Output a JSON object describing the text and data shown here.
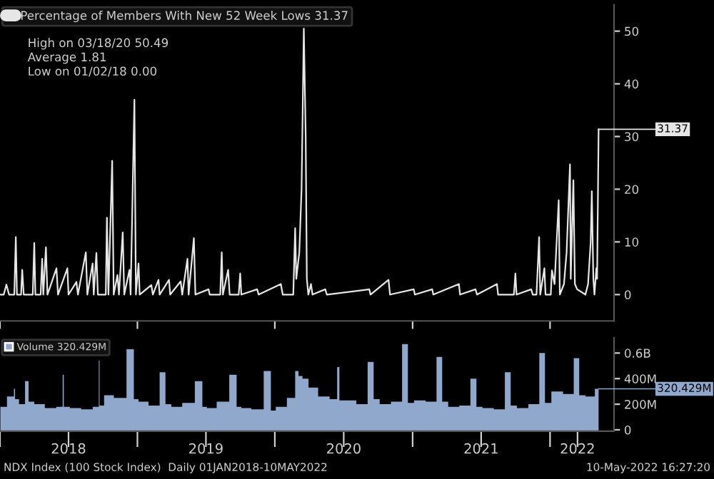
{
  "chart_data": [
    {
      "type": "line",
      "legend": "top left",
      "tick_labels": "y",
      "grid": false,
      "xlim": [
        "2018-01-01",
        "2022-06-20"
      ],
      "ylim": [
        -5,
        55
      ],
      "yticks": [
        0,
        10,
        20,
        30,
        40,
        50
      ],
      "xticks": [
        {
          "value": "2018-01-01",
          "label": null
        },
        {
          "value": "2019-01-01",
          "label": null
        },
        {
          "value": "2020-01-01",
          "label": null
        },
        {
          "value": "2021-01-01",
          "label": null
        },
        {
          "value": "2022-01-01",
          "label": null
        }
      ],
      "annotations": [
        "High on 03/18/20 50.49",
        "Average 1.81",
        "Low on 01/02/18 0.00",
        {
          "text": "31.37",
          "x": "2022-05-10",
          "y": 31.37
        }
      ],
      "series": [
        {
          "name": "Percentage of Members With New 52 Week Lows 31.37",
          "color": "#e6e6e6",
          "x": [
            "2018-01-02",
            "2018-01-11",
            "2018-01-18",
            "2018-01-25",
            "2018-02-08",
            "2018-02-12",
            "2018-02-15",
            "2018-02-26",
            "2018-03-01",
            "2018-03-05",
            "2018-03-29",
            "2018-04-02",
            "2018-04-05",
            "2018-04-19",
            "2018-04-23",
            "2018-04-26",
            "2018-05-03",
            "2018-05-07",
            "2018-05-31",
            "2018-06-04",
            "2018-06-29",
            "2018-07-02",
            "2018-07-23",
            "2018-07-27",
            "2018-08-17",
            "2018-08-21",
            "2018-09-04",
            "2018-09-07",
            "2018-09-14",
            "2018-09-18",
            "2018-10-09",
            "2018-10-12",
            "2018-10-16",
            "2018-10-26",
            "2018-10-30",
            "2018-11-09",
            "2018-11-13",
            "2018-11-23",
            "2018-11-27",
            "2018-12-11",
            "2018-12-14",
            "2018-12-24",
            "2018-12-28",
            "2019-01-04",
            "2019-01-07",
            "2019-02-07",
            "2019-02-11",
            "2019-02-26",
            "2019-03-01",
            "2019-03-26",
            "2019-03-29",
            "2019-04-26",
            "2019-04-30",
            "2019-05-14",
            "2019-05-17",
            "2019-05-31",
            "2019-06-04",
            "2019-07-09",
            "2019-07-12",
            "2019-08-09",
            "2019-08-13",
            "2019-08-16",
            "2019-08-30",
            "2019-09-03",
            "2019-09-27",
            "2019-10-01",
            "2019-10-04",
            "2019-11-15",
            "2019-11-19",
            "2020-01-17",
            "2020-01-22",
            "2020-02-19",
            "2020-02-24",
            "2020-02-27",
            "2020-03-06",
            "2020-03-12",
            "2020-03-18",
            "2020-03-23",
            "2020-03-26",
            "2020-03-30",
            "2020-04-06",
            "2020-04-10",
            "2020-05-14",
            "2020-05-18",
            "2020-09-08",
            "2020-09-11",
            "2020-10-29",
            "2020-11-02",
            "2021-01-04",
            "2021-01-07",
            "2021-02-22",
            "2021-02-25",
            "2021-05-04",
            "2021-05-07",
            "2021-06-17",
            "2021-06-21",
            "2021-08-13",
            "2021-08-16",
            "2021-09-27",
            "2021-10-01",
            "2021-10-04",
            "2021-11-12",
            "2021-11-16",
            "2021-11-26",
            "2021-12-03",
            "2021-12-06",
            "2021-12-17",
            "2021-12-20",
            "2022-01-03",
            "2022-01-06",
            "2022-01-13",
            "2022-01-24",
            "2022-01-27",
            "2022-02-07",
            "2022-02-14",
            "2022-02-23",
            "2022-02-25",
            "2022-03-04",
            "2022-03-08",
            "2022-03-14",
            "2022-04-05",
            "2022-04-12",
            "2022-04-19",
            "2022-04-22",
            "2022-04-26",
            "2022-04-29",
            "2022-05-04",
            "2022-05-06",
            "2022-05-10"
          ],
          "values": [
            0,
            0,
            1.9,
            0,
            0,
            10.9,
            0,
            0,
            4.7,
            0,
            0,
            9.8,
            0,
            0,
            6.8,
            0,
            9,
            0,
            5,
            0,
            5,
            0,
            2.4,
            0,
            8,
            0,
            5.9,
            0,
            7.9,
            0,
            0,
            14.6,
            0,
            25.4,
            0,
            3.7,
            0,
            11.8,
            0,
            4.7,
            0,
            37,
            0,
            5.9,
            0,
            1.8,
            0,
            2.8,
            0,
            2.8,
            0,
            2.5,
            0,
            6.8,
            0,
            10.7,
            0,
            1,
            0,
            0,
            8,
            0,
            4.7,
            0,
            0,
            4,
            0,
            1,
            0,
            2,
            0,
            0,
            12.6,
            3,
            8,
            20,
            50.49,
            30,
            3,
            0,
            2,
            0,
            1,
            0,
            1,
            0,
            2.8,
            0,
            1,
            0,
            1,
            0,
            2,
            0,
            1,
            0,
            2,
            0,
            0,
            4,
            0,
            1,
            0,
            0,
            10.9,
            0,
            5,
            0,
            0,
            4.6,
            2,
            17.9,
            0,
            2,
            8,
            24.7,
            3,
            21.7,
            2,
            1,
            0,
            2,
            10,
            19.6,
            3,
            0,
            5,
            3,
            31.37
          ]
        }
      ]
    },
    {
      "type": "area",
      "tick_labels": "xy",
      "legend": "top left",
      "grid": false,
      "xlim": [
        "2018-01-01",
        "2022-06-20"
      ],
      "ylim": [
        -10000000,
        720000000
      ],
      "yticks": [
        0,
        {
          "value": 200000000,
          "label": "200M"
        },
        {
          "value": 400000000,
          "label": "400M"
        },
        {
          "value": 600000000,
          "label": "0.6B"
        }
      ],
      "xticks": [
        {
          "value": "2018-01-01",
          "label": null
        },
        {
          "value": "2018-07-02",
          "label": "2018"
        },
        {
          "value": "2019-01-01",
          "label": null
        },
        {
          "value": "2019-07-02",
          "label": "2019"
        },
        {
          "value": "2020-01-01",
          "label": null
        },
        {
          "value": "2020-07-02",
          "label": "2020"
        },
        {
          "value": "2021-01-01",
          "label": null
        },
        {
          "value": "2021-07-02",
          "label": "2021"
        },
        {
          "value": "2022-01-01",
          "label": null
        },
        {
          "value": "2022-03-15",
          "label": "2022"
        }
      ],
      "annotations": [
        "NDX Index (100 Stock Index)  Daily 01JAN2018-10MAY2022",
        "10-May-2022 16:27:20",
        {
          "text": "320.429M",
          "x": "2022-05-10",
          "y": 320429000
        }
      ],
      "series": [
        {
          "name": "Volume 320.429M",
          "color": "#8fa8cc",
          "x": [
            "2018-01-02",
            "2018-02-06",
            "2018-02-08",
            "2018-02-12",
            "2018-03-01",
            "2018-03-16",
            "2018-03-20",
            "2018-04-15",
            "2018-05-15",
            "2018-06-15",
            "2018-06-18",
            "2018-06-21",
            "2018-07-20",
            "2018-08-20",
            "2018-09-20",
            "2018-09-21",
            "2018-09-24",
            "2018-10-15",
            "2018-11-15",
            "2018-12-21",
            "2018-12-24",
            "2019-01-15",
            "2019-02-15",
            "2019-03-15",
            "2019-03-18",
            "2019-04-15",
            "2019-05-15",
            "2019-06-21",
            "2019-06-24",
            "2019-07-15",
            "2019-08-15",
            "2019-09-20",
            "2019-09-23",
            "2019-10-15",
            "2019-11-15",
            "2019-12-20",
            "2019-12-23",
            "2020-01-15",
            "2020-02-20",
            "2020-02-28",
            "2020-03-09",
            "2020-03-20",
            "2020-04-10",
            "2020-05-10",
            "2020-06-10",
            "2020-06-19",
            "2020-06-22",
            "2020-07-20",
            "2020-08-20",
            "2020-09-18",
            "2020-09-21",
            "2020-10-20",
            "2020-11-20",
            "2020-12-18",
            "2020-12-21",
            "2021-01-20",
            "2021-02-20",
            "2021-03-19",
            "2021-03-22",
            "2021-04-20",
            "2021-05-20",
            "2021-06-18",
            "2021-06-21",
            "2021-07-20",
            "2021-08-20",
            "2021-09-17",
            "2021-09-20",
            "2021-10-20",
            "2021-11-20",
            "2021-12-17",
            "2021-12-20",
            "2022-01-20",
            "2022-02-20",
            "2022-03-18",
            "2022-03-21",
            "2022-04-20",
            "2022-05-10"
          ],
          "values": [
            180000000,
            260000000,
            320000000,
            240000000,
            200000000,
            380000000,
            220000000,
            200000000,
            170000000,
            180000000,
            430000000,
            180000000,
            170000000,
            160000000,
            180000000,
            540000000,
            190000000,
            270000000,
            250000000,
            630000000,
            240000000,
            220000000,
            190000000,
            450000000,
            200000000,
            180000000,
            210000000,
            380000000,
            180000000,
            170000000,
            220000000,
            430000000,
            180000000,
            170000000,
            160000000,
            460000000,
            150000000,
            180000000,
            250000000,
            460000000,
            420000000,
            400000000,
            330000000,
            260000000,
            240000000,
            490000000,
            230000000,
            230000000,
            200000000,
            530000000,
            240000000,
            200000000,
            220000000,
            670000000,
            210000000,
            230000000,
            220000000,
            570000000,
            220000000,
            180000000,
            190000000,
            400000000,
            180000000,
            170000000,
            160000000,
            450000000,
            190000000,
            170000000,
            200000000,
            600000000,
            210000000,
            300000000,
            280000000,
            560000000,
            270000000,
            260000000,
            320429000
          ]
        }
      ]
    }
  ]
}
